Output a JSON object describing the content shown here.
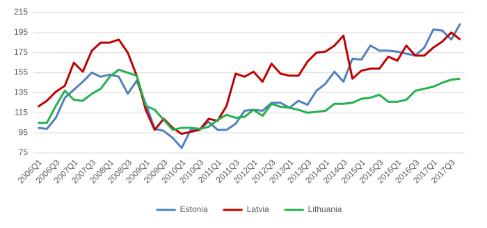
{
  "chart_data": {
    "type": "line",
    "categories": [
      "2006Q1",
      null,
      "2006Q3",
      null,
      "2007Q1",
      null,
      "2007Q3",
      null,
      "2008Q1",
      null,
      "2008Q3",
      null,
      "2009Q1",
      null,
      "2009Q3",
      null,
      "2010Q1",
      null,
      "2010Q3",
      null,
      "2011Q1",
      null,
      "2011Q3",
      null,
      "2012Q1",
      null,
      "2012Q3",
      null,
      "2013Q1",
      null,
      "2013Q3",
      null,
      "2014Q1",
      null,
      "2014Q3",
      null,
      "2015Q1",
      null,
      "2015Q3",
      null,
      "2016Q1",
      null,
      "2016Q3",
      null,
      "2017Q1",
      null,
      "2017Q3",
      null
    ],
    "series": [
      {
        "name": "Estonia",
        "color": "#4f81bd",
        "values": [
          100,
          99,
          110,
          130,
          138,
          146,
          155,
          151,
          153,
          151,
          134,
          147,
          124,
          99,
          97,
          90,
          80,
          98,
          99,
          106,
          98,
          98,
          104,
          117,
          118,
          117,
          125,
          125,
          120,
          127,
          123,
          137,
          144,
          156,
          146,
          169,
          168,
          182,
          177,
          177,
          176,
          174,
          172,
          180,
          198,
          197,
          188,
          204
        ]
      },
      {
        "name": "Latvia",
        "color": "#c00000",
        "values": [
          121,
          127,
          136,
          142,
          165,
          156,
          177,
          185,
          185,
          188,
          175,
          152,
          118,
          98,
          109,
          100,
          94,
          96,
          98,
          109,
          107,
          122,
          154,
          151,
          156,
          146,
          164,
          154,
          152,
          152,
          166,
          175,
          176,
          182,
          192,
          149,
          157,
          159,
          159,
          171,
          167,
          182,
          172,
          172,
          180,
          186,
          195,
          188
        ]
      },
      {
        "name": "Lithuania",
        "color": "#22b14c",
        "values": [
          105,
          105,
          122,
          137,
          128,
          127,
          134,
          139,
          151,
          158,
          155,
          152,
          122,
          118,
          108,
          98,
          100,
          100,
          99,
          101,
          108,
          113,
          110,
          111,
          118,
          112,
          124,
          121,
          120,
          118,
          115,
          116,
          117,
          124,
          124,
          125,
          129,
          130,
          133,
          126,
          126,
          128,
          137,
          139,
          141,
          145,
          148,
          149
        ]
      }
    ],
    "ylim": [
      75,
      215
    ],
    "yticks": [
      75,
      95,
      115,
      135,
      155,
      175,
      195,
      215
    ],
    "grid": true,
    "legend": "bottom"
  }
}
